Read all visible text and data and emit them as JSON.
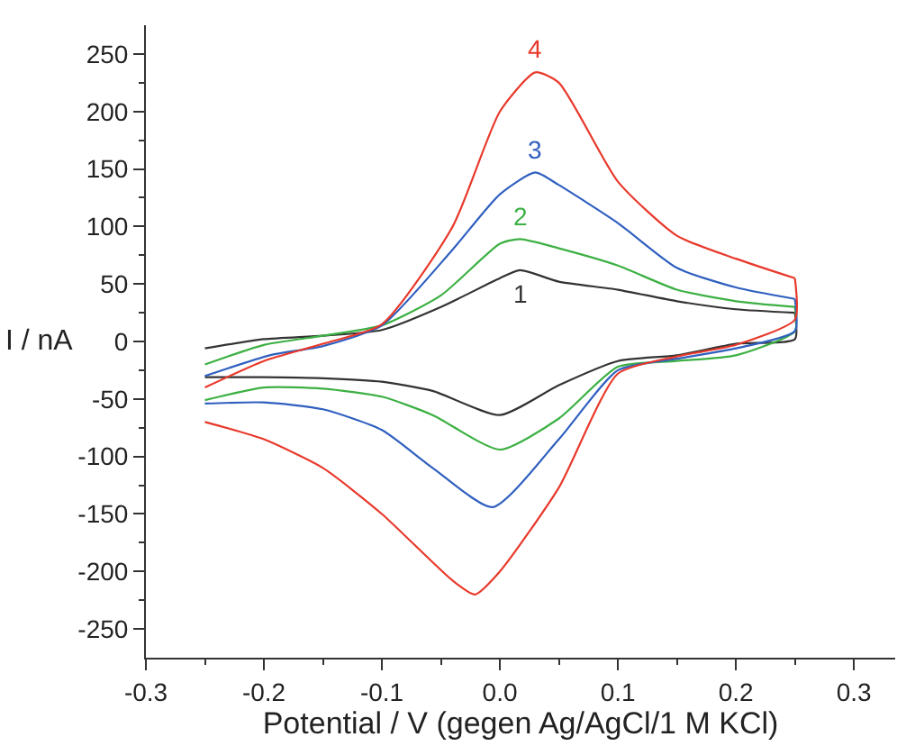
{
  "chart_data": {
    "type": "line",
    "xlabel": "Potential / V (gegen Ag/AgCl/1 M KCl)",
    "ylabel": "I / nA",
    "xlim": [
      -0.3,
      0.335
    ],
    "ylim": [
      -275,
      275
    ],
    "xticks": [
      -0.3,
      -0.2,
      -0.1,
      {
        "value": 0,
        "label": "0.0"
      },
      0.1,
      0.2,
      0.3
    ],
    "yticks": [
      -250,
      -200,
      -150,
      -100,
      -50,
      0,
      50,
      100,
      150,
      200,
      250
    ],
    "legend": false,
    "marker": "none",
    "line_style": "solid",
    "series": [
      {
        "color": "#333333",
        "x": [
          -0.25,
          -0.2,
          -0.15,
          -0.1,
          -0.05,
          0,
          0.017,
          0.05,
          0.1,
          0.15,
          0.2,
          0.25
        ],
        "values": [
          -6,
          2,
          5,
          10,
          30,
          55,
          62,
          52,
          45,
          35,
          28,
          25
        ]
      },
      {
        "color": "#333333",
        "x": [
          0.25,
          0.25,
          0.2,
          0.15,
          0.1,
          0.05,
          0,
          -0.057,
          -0.1,
          -0.15,
          -0.2,
          -0.25
        ],
        "values": [
          25,
          2,
          -2,
          -12,
          -17,
          -38,
          -64,
          -43,
          -35,
          -32,
          -31,
          -31
        ]
      },
      {
        "color": "#3cb043",
        "x": [
          -0.25,
          -0.2,
          -0.15,
          -0.1,
          -0.05,
          0,
          0.017,
          0.05,
          0.1,
          0.15,
          0.2,
          0.25
        ],
        "values": [
          -20,
          -3,
          5,
          14,
          40,
          85,
          89,
          81,
          66,
          45,
          35,
          30
        ]
      },
      {
        "color": "#3cb043",
        "x": [
          0.25,
          0.25,
          0.2,
          0.15,
          0.1,
          0.05,
          0,
          -0.057,
          -0.1,
          -0.15,
          -0.2,
          -0.25
        ],
        "values": [
          30,
          9,
          -12,
          -17,
          -22,
          -67,
          -94,
          -64,
          -48,
          -41,
          -40,
          -51
        ]
      },
      {
        "color": "#2f5fbf",
        "x": [
          -0.25,
          -0.195,
          -0.15,
          -0.1,
          -0.04,
          0,
          0.03,
          0.05,
          0.1,
          0.15,
          0.2,
          0.25
        ],
        "values": [
          -30,
          -12,
          -4,
          14,
          80,
          128,
          147,
          136,
          103,
          64,
          47,
          37
        ]
      },
      {
        "color": "#2f5fbf",
        "x": [
          0.25,
          0.25,
          0.2,
          0.15,
          0.1,
          0.05,
          -0.006,
          -0.057,
          -0.1,
          -0.15,
          -0.2,
          -0.25
        ],
        "values": [
          37,
          9,
          -6,
          -15,
          -25,
          -85,
          -144,
          -110,
          -77,
          -59,
          -53,
          -54
        ]
      },
      {
        "color": "#e8392b",
        "x": [
          -0.25,
          -0.2,
          -0.15,
          -0.1,
          -0.04,
          0,
          0.03,
          0.05,
          0.1,
          0.15,
          0.2,
          0.25
        ],
        "values": [
          -40,
          -17,
          -2,
          15,
          100,
          200,
          234,
          225,
          139,
          92,
          72,
          55
        ]
      },
      {
        "color": "#e8392b",
        "x": [
          0.25,
          0.25,
          0.2,
          0.15,
          0.1,
          0.05,
          0,
          -0.021,
          -0.04,
          -0.1,
          -0.15,
          -0.2,
          -0.25
        ],
        "values": [
          55,
          19,
          -3,
          -13,
          -28,
          -127,
          -200,
          -220,
          -208,
          -150,
          -110,
          -85,
          -70
        ]
      }
    ],
    "annotations": [
      "1",
      "2",
      "3",
      "4"
    ]
  }
}
